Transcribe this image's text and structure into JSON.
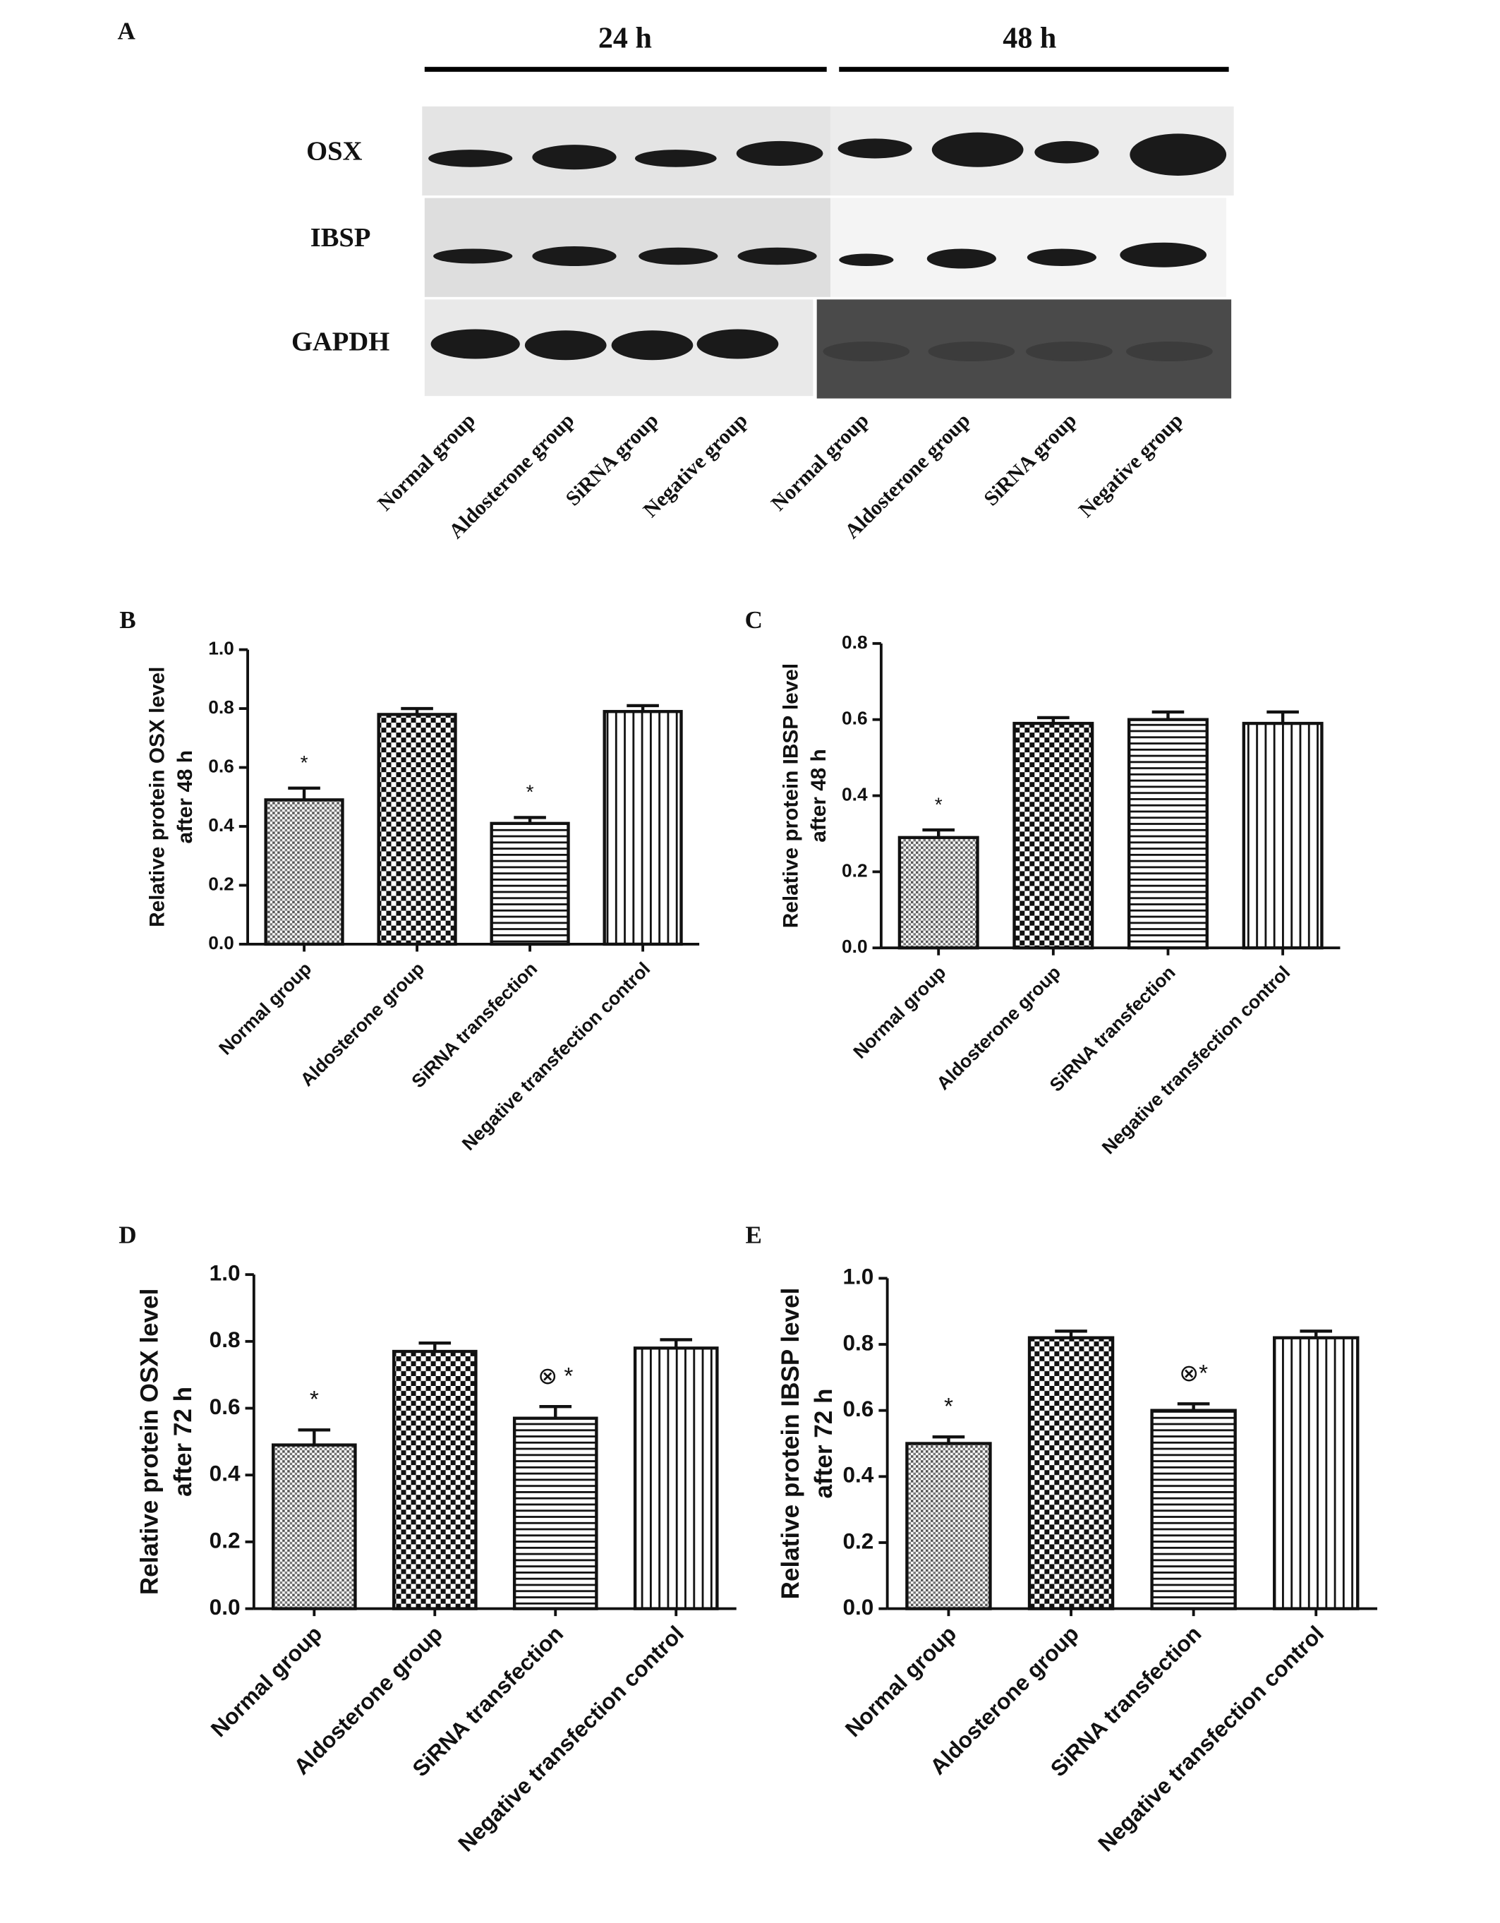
{
  "blot": {
    "panel": "A",
    "time_labels": [
      "24 h",
      "48 h"
    ],
    "rows": [
      "OSX",
      "IBSP",
      "GAPDH"
    ],
    "lanes": [
      "Normal group",
      "Aldosterone group",
      "SiRNA  group",
      "Negative group",
      "Normal group",
      "Aldosterone group",
      "SiRNA group",
      "Negative  group"
    ]
  },
  "chart_data": [
    {
      "type": "bar",
      "panel": "B",
      "ylabel": [
        "Relative protein OSX level",
        "after 48 h"
      ],
      "categories": [
        "Normal group",
        "Aldosterone  group",
        "SiRNA transfection",
        "Negative transfection control"
      ],
      "values": [
        0.49,
        0.78,
        0.41,
        0.79
      ],
      "errors": [
        0.04,
        0.02,
        0.02,
        0.02
      ],
      "annotations": [
        "*",
        null,
        "*",
        null
      ],
      "ylim": [
        0,
        1
      ],
      "yticks": [
        {
          "value": 0,
          "label": "0.0"
        },
        0.2,
        0.4,
        0.6,
        0.8,
        {
          "value": 1,
          "label": "1.0"
        }
      ]
    },
    {
      "type": "bar",
      "panel": "C",
      "ylabel": [
        "Relative protein IBSP level",
        "after 48 h"
      ],
      "categories": [
        "Normal group",
        "Aldosterone  group",
        "SiRNA transfection",
        "Negative transfection control"
      ],
      "values": [
        0.29,
        0.59,
        0.6,
        0.59
      ],
      "errors": [
        0.02,
        0.015,
        0.02,
        0.03
      ],
      "annotations": [
        "*",
        null,
        null,
        null
      ],
      "ylim": [
        0,
        0.8
      ],
      "yticks": [
        {
          "value": 0,
          "label": "0.0"
        },
        0.2,
        0.4,
        0.6,
        0.8
      ]
    },
    {
      "type": "bar",
      "panel": "D",
      "ylabel": [
        "Relative protein OSX level",
        "after 72 h"
      ],
      "categories": [
        "Normal group",
        "Aldosterone  group",
        "SiRNA transfection",
        "Negative transfection control"
      ],
      "values": [
        0.49,
        0.77,
        0.57,
        0.78
      ],
      "errors": [
        0.045,
        0.025,
        0.035,
        0.025
      ],
      "annotations": [
        "*",
        null,
        "⊗ *",
        null
      ],
      "ylim": [
        0,
        1
      ],
      "yticks": [
        {
          "value": 0,
          "label": "0.0"
        },
        0.2,
        0.4,
        0.6,
        0.8,
        {
          "value": 1,
          "label": "1.0"
        }
      ]
    },
    {
      "type": "bar",
      "panel": "E",
      "ylabel": [
        "Relative protein IBSP level",
        "after 72 h"
      ],
      "categories": [
        "Normal group",
        "Aldosterone  group",
        "SiRNA transfection",
        "Negative transfection control"
      ],
      "values": [
        0.5,
        0.82,
        0.6,
        0.82
      ],
      "errors": [
        0.02,
        0.02,
        0.02,
        0.02
      ],
      "annotations": [
        "*",
        null,
        "⊗*",
        null
      ],
      "ylim": [
        0,
        1
      ],
      "yticks": [
        {
          "value": 0,
          "label": "0.0"
        },
        0.2,
        0.4,
        0.6,
        0.8,
        {
          "value": 1,
          "label": "1.0"
        }
      ]
    }
  ]
}
